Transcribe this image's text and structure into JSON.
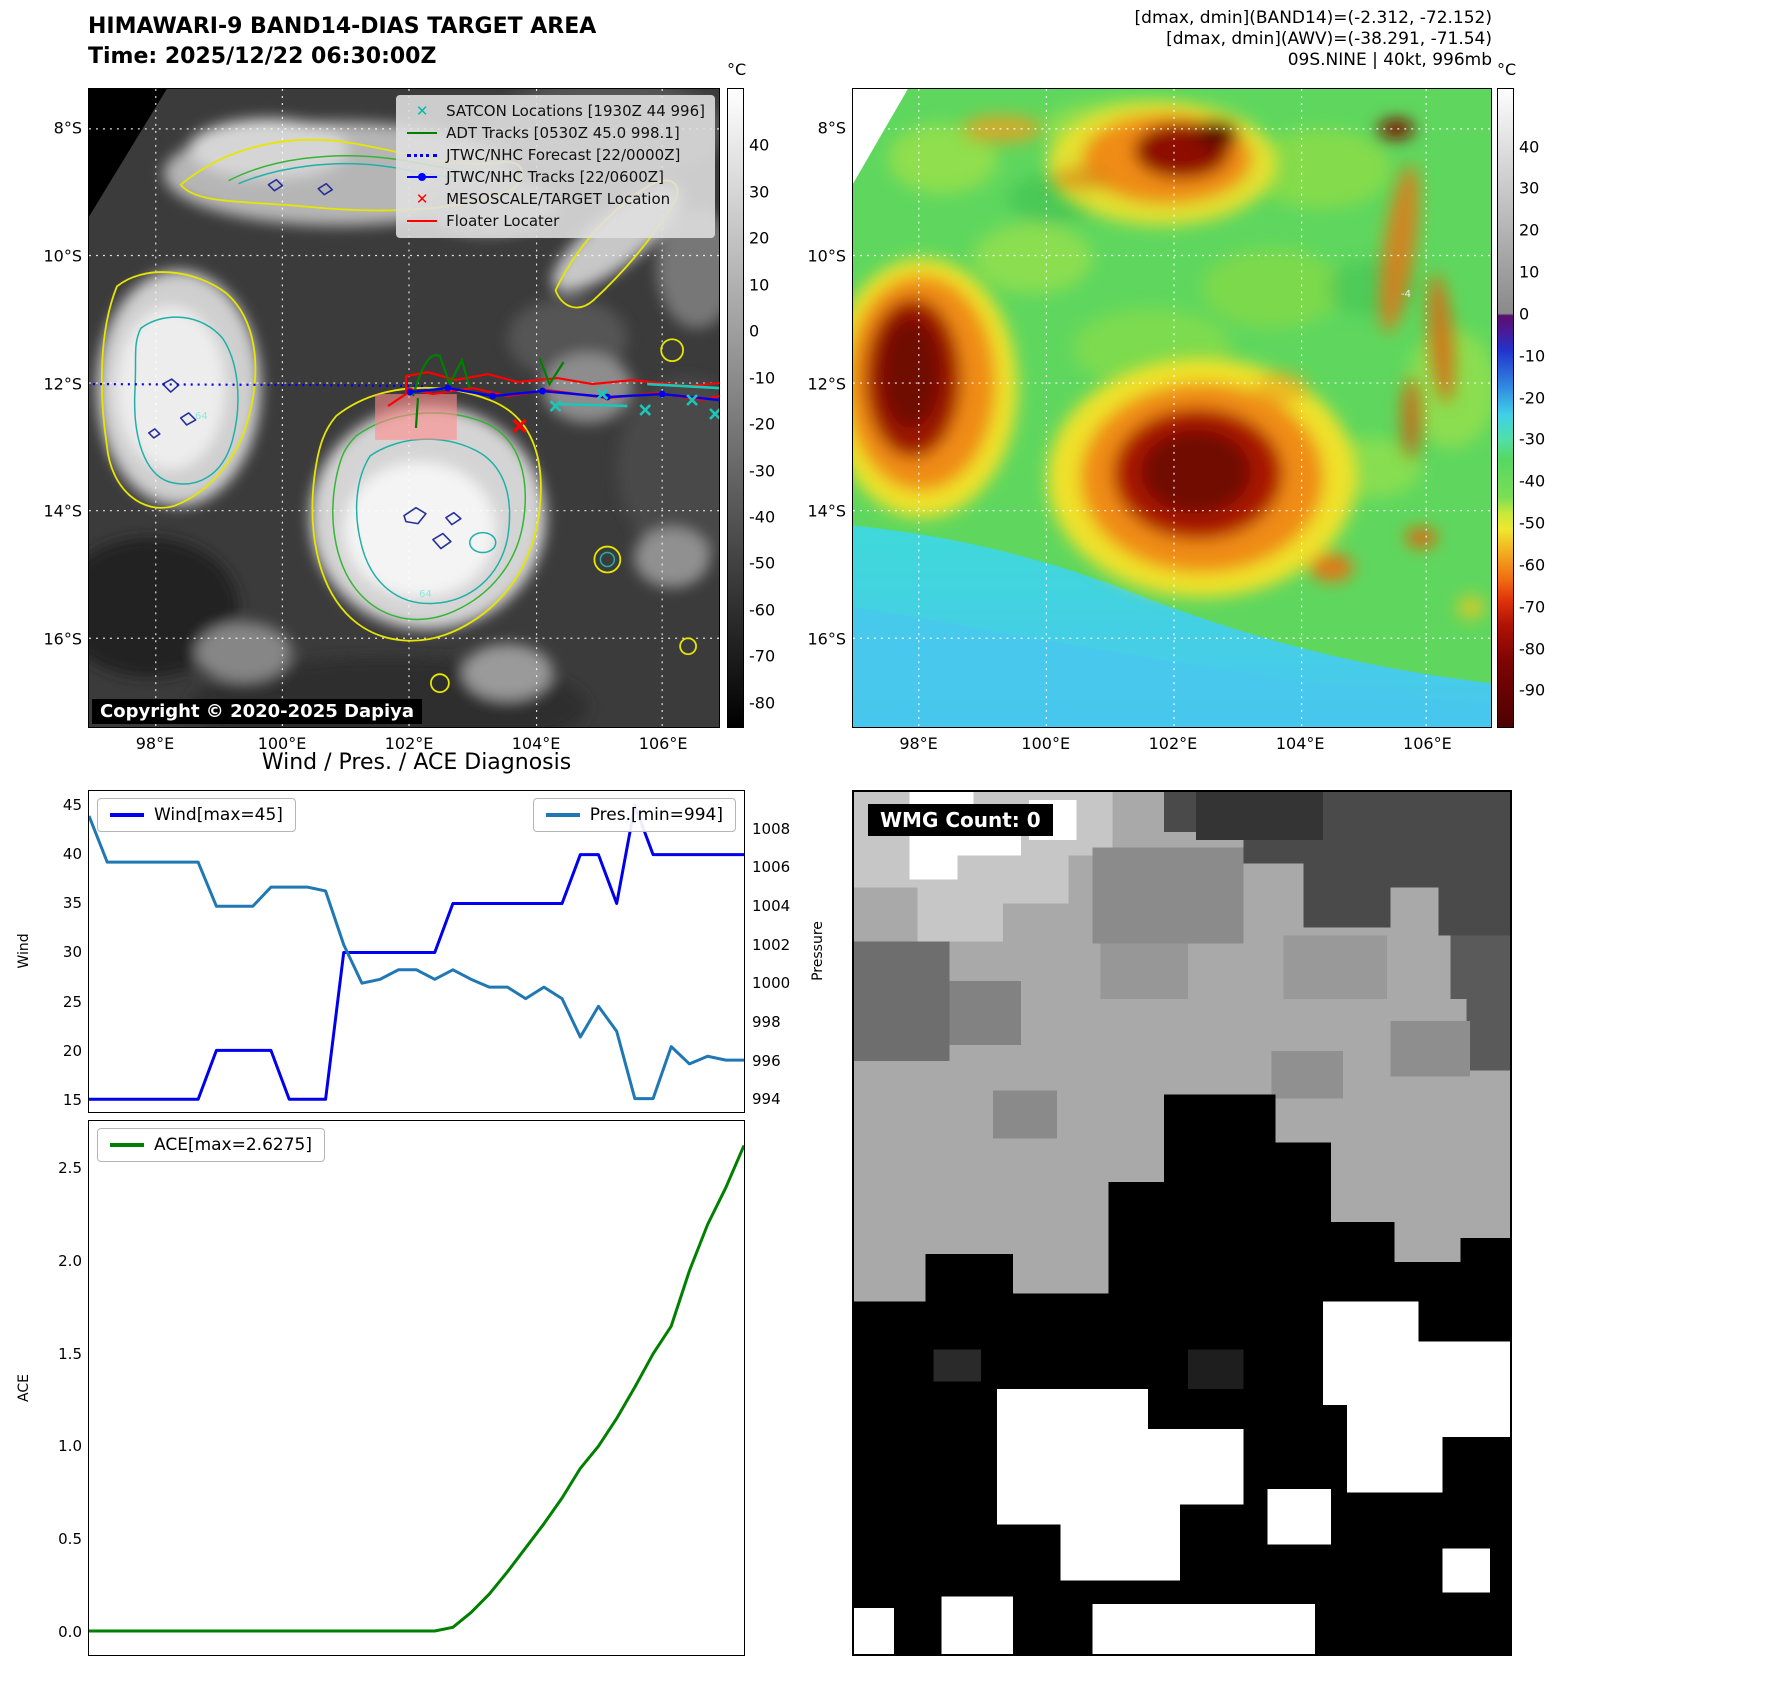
{
  "icons": {
    "x_marker": "✕"
  },
  "geo": {
    "lat_labels": [
      "8°S",
      "10°S",
      "12°S",
      "14°S",
      "16°S"
    ],
    "lon_labels": [
      "98°E",
      "100°E",
      "102°E",
      "104°E",
      "106°E"
    ]
  },
  "panel_band14": {
    "title": "HIMAWARI-9 BAND14-DIAS TARGET AREA",
    "subtitle": "Time: 2025/12/22 06:30:00Z",
    "copyright": "Copyright © 2020-2025 Dapiya",
    "colorbar": {
      "unit": "°C",
      "ticks": [
        "40",
        "30",
        "20",
        "10",
        "0",
        "-10",
        "-20",
        "-30",
        "-40",
        "-50",
        "-60",
        "-70",
        "-80"
      ]
    },
    "contour_labels": [
      "64",
      "64"
    ],
    "legend": {
      "items": [
        {
          "label": "SATCON Locations [1930Z 44 996]",
          "color": "#00bdb0",
          "marker": "x"
        },
        {
          "label": "ADT Tracks [0530Z 45.0 998.1]",
          "color": "#008000",
          "marker": "line"
        },
        {
          "label": "JTWC/NHC Forecast [22/0000Z]",
          "color": "#0000ff",
          "marker": "dotted-line"
        },
        {
          "label": "JTWC/NHC Tracks [22/0600Z]",
          "color": "#0000ff",
          "marker": "line-dot"
        },
        {
          "label": "MESOSCALE/TARGET Location",
          "color": "#ff0000",
          "marker": "x"
        },
        {
          "label": "Floater Locater",
          "color": "#ff0000",
          "marker": "line"
        }
      ]
    }
  },
  "panel_awv": {
    "header_lines": [
      "[dmax, dmin](BAND14)=(-2.312, -72.152)",
      "[dmax, dmin](AWV)=(-38.291, -71.54)",
      "09S.NINE | 40kt, 996mb"
    ],
    "colorbar": {
      "unit": "°C",
      "ticks": [
        "40",
        "30",
        "20",
        "10",
        "0",
        "-10",
        "-20",
        "-30",
        "-40",
        "-50",
        "-60",
        "-70",
        "-80",
        "-90"
      ]
    },
    "contour_labels": [
      "-4"
    ]
  },
  "chart_data": [
    {
      "type": "line",
      "title": "Wind / Pres. / ACE Diagnosis",
      "series": [
        {
          "name": "Wind[max=45]",
          "color": "#0000ee",
          "axis": "left",
          "range": [
            13.7,
            46.5
          ],
          "values": [
            15,
            15,
            15,
            15,
            15,
            15,
            15,
            20,
            20,
            20,
            20,
            15,
            15,
            15,
            30,
            30,
            30,
            30,
            30,
            30,
            35,
            35,
            35,
            35,
            35,
            35,
            35,
            40,
            40,
            35,
            45,
            40,
            40,
            40,
            40,
            40,
            40
          ]
        },
        {
          "name": "Pres.[min=994]",
          "color": "#1f77b4",
          "axis": "right",
          "range": [
            993.3,
            1010
          ],
          "values": [
            1008.7,
            1006.3,
            1006.3,
            1006.3,
            1006.3,
            1006.3,
            1006.3,
            1004,
            1004,
            1004,
            1005,
            1005,
            1005,
            1004.8,
            1002,
            1000,
            1000.2,
            1000.7,
            1000.7,
            1000.2,
            1000.7,
            1000.2,
            999.8,
            999.8,
            999.2,
            999.8,
            999.2,
            997.2,
            998.8,
            997.5,
            994,
            994,
            996.7,
            995.8,
            996.2,
            996,
            996
          ]
        }
      ],
      "left_axis": {
        "label": "Wind",
        "ticks": [
          "45",
          "40",
          "35",
          "30",
          "25",
          "20",
          "15"
        ]
      },
      "right_axis": {
        "label": "Pressure",
        "ticks": [
          "1008",
          "1006",
          "1004",
          "1002",
          "1000",
          "998",
          "996",
          "994"
        ]
      }
    },
    {
      "type": "line",
      "series": [
        {
          "name": "ACE[max=2.6275]",
          "color": "#008000",
          "axis": "left",
          "range": [
            -0.13,
            2.76
          ],
          "values": [
            0,
            0,
            0,
            0,
            0,
            0,
            0,
            0,
            0,
            0,
            0,
            0,
            0,
            0,
            0,
            0,
            0,
            0,
            0,
            0,
            0.02,
            0.1,
            0.2,
            0.32,
            0.45,
            0.58,
            0.72,
            0.88,
            1.0,
            1.15,
            1.32,
            1.5,
            1.65,
            1.95,
            2.2,
            2.4,
            2.6275
          ]
        }
      ],
      "left_axis": {
        "label": "ACE",
        "ticks": [
          "2.5",
          "2.0",
          "1.5",
          "1.0",
          "0.5",
          "0.0"
        ]
      }
    }
  ],
  "panel_wmg": {
    "label": "WMG Count: 0"
  }
}
